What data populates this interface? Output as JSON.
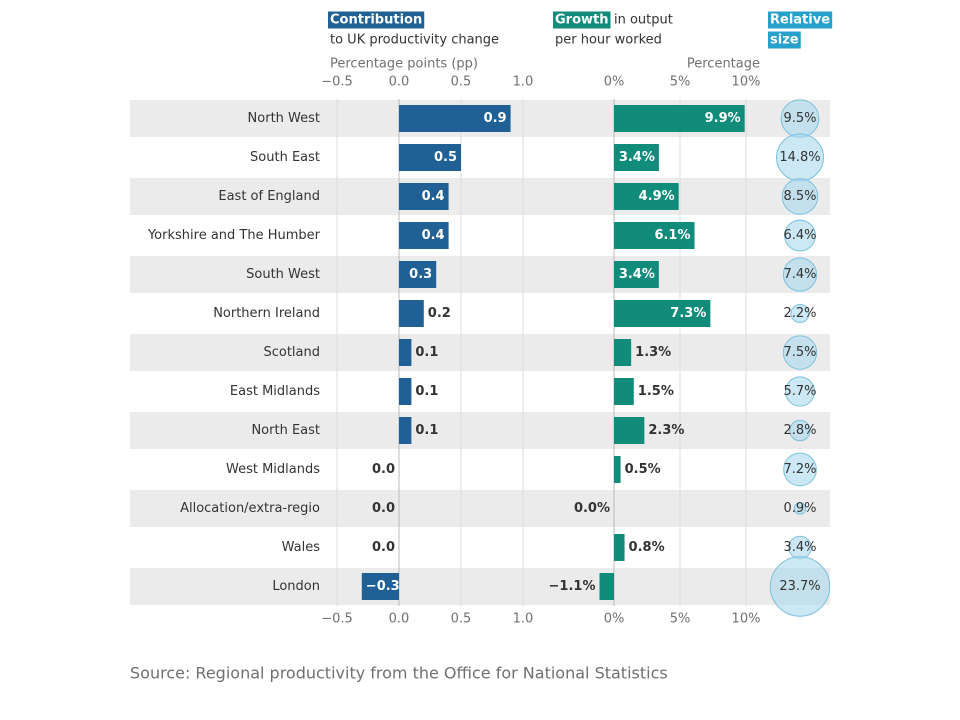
{
  "chart_data": [
    {
      "type": "bar",
      "orientation": "horizontal",
      "title": "Contribution",
      "subtitle": "to UK productivity change",
      "xlabel": "Percentage points (pp)",
      "categories": [
        "North West",
        "South East",
        "East of England",
        "Yorkshire and The Humber",
        "South West",
        "Northern Ireland",
        "Scotland",
        "East Midlands",
        "North East",
        "West Midlands",
        "Allocation/extra-regio",
        "Wales",
        "London"
      ],
      "values": [
        0.9,
        0.5,
        0.4,
        0.4,
        0.3,
        0.2,
        0.1,
        0.1,
        0.1,
        0.0,
        0.0,
        0.0,
        -0.3
      ],
      "value_labels": [
        "0.9",
        "0.5",
        "0.4",
        "0.4",
        "0.3",
        "0.2",
        "0.1",
        "0.1",
        "0.1",
        "0.0",
        "0.0",
        "0.0",
        "−0.3"
      ],
      "color": "#206095",
      "xlim": [
        -0.5,
        1.0
      ],
      "xticks": [
        {
          "value": -0.5,
          "label": "−0.5"
        },
        {
          "value": 0,
          "label": "0.0"
        },
        0.5,
        {
          "value": 1,
          "label": "1.0"
        }
      ],
      "grid": true
    },
    {
      "type": "bar",
      "orientation": "horizontal",
      "title": "Growth",
      "title_suffix": "in output",
      "subtitle": "per hour worked",
      "xlabel": "Percentage",
      "values": [
        9.9,
        3.4,
        4.9,
        6.1,
        3.4,
        7.3,
        1.3,
        1.5,
        2.3,
        0.5,
        0.0,
        0.8,
        -1.1
      ],
      "value_labels": [
        "9.9%",
        "3.4%",
        "4.9%",
        "6.1%",
        "3.4%",
        "7.3%",
        "1.3%",
        "1.5%",
        "2.3%",
        "0.5%",
        "0.0%",
        "0.8%",
        "−1.1%"
      ],
      "color": "#118c7b",
      "xlim": [
        0,
        10
      ],
      "xticks": [
        {
          "value": 0,
          "label": "0%"
        },
        {
          "value": 5,
          "label": "5%"
        },
        {
          "value": 10,
          "label": "10%"
        }
      ],
      "grid": true
    },
    {
      "type": "bubble",
      "title": "Relative",
      "title_line2": "size",
      "values": [
        9.5,
        14.8,
        8.5,
        6.4,
        7.4,
        2.2,
        7.5,
        5.7,
        2.8,
        7.2,
        0.9,
        3.4,
        23.7
      ],
      "value_labels": [
        "9.5%",
        "14.8%",
        "8.5%",
        "6.4%",
        "7.4%",
        "2.2%",
        "7.5%",
        "5.7%",
        "2.8%",
        "7.2%",
        "0.9%",
        "3.4%",
        "23.7%"
      ],
      "color": "#a8d8ec",
      "title_color": "#27a0cc"
    }
  ],
  "source": "Source: Regional productivity from the Office for National Statistics"
}
